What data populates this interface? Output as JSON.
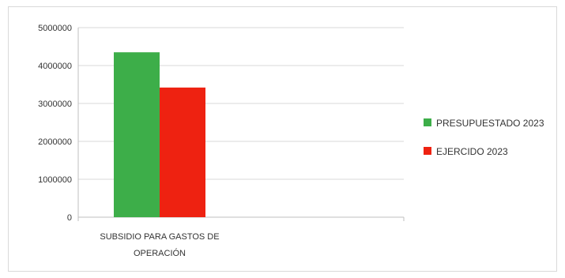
{
  "chart_data": {
    "type": "bar",
    "title": "",
    "xlabel": "",
    "ylabel": "",
    "categories": [
      [
        "SUBSIDIO PARA GASTOS DE",
        "OPERACIÓN"
      ]
    ],
    "series": [
      {
        "name": "PRESUPUESTADO 2023",
        "color": "#3dae49",
        "values": [
          4350000
        ]
      },
      {
        "name": "EJERCIDO 2023",
        "color": "#ee2211",
        "values": [
          3420000
        ]
      }
    ],
    "ylim": [
      0,
      5000000
    ],
    "yticks": [
      "0",
      "1000000",
      "2000000",
      "3000000",
      "4000000",
      "5000000"
    ],
    "grid": true,
    "legend": "right"
  }
}
